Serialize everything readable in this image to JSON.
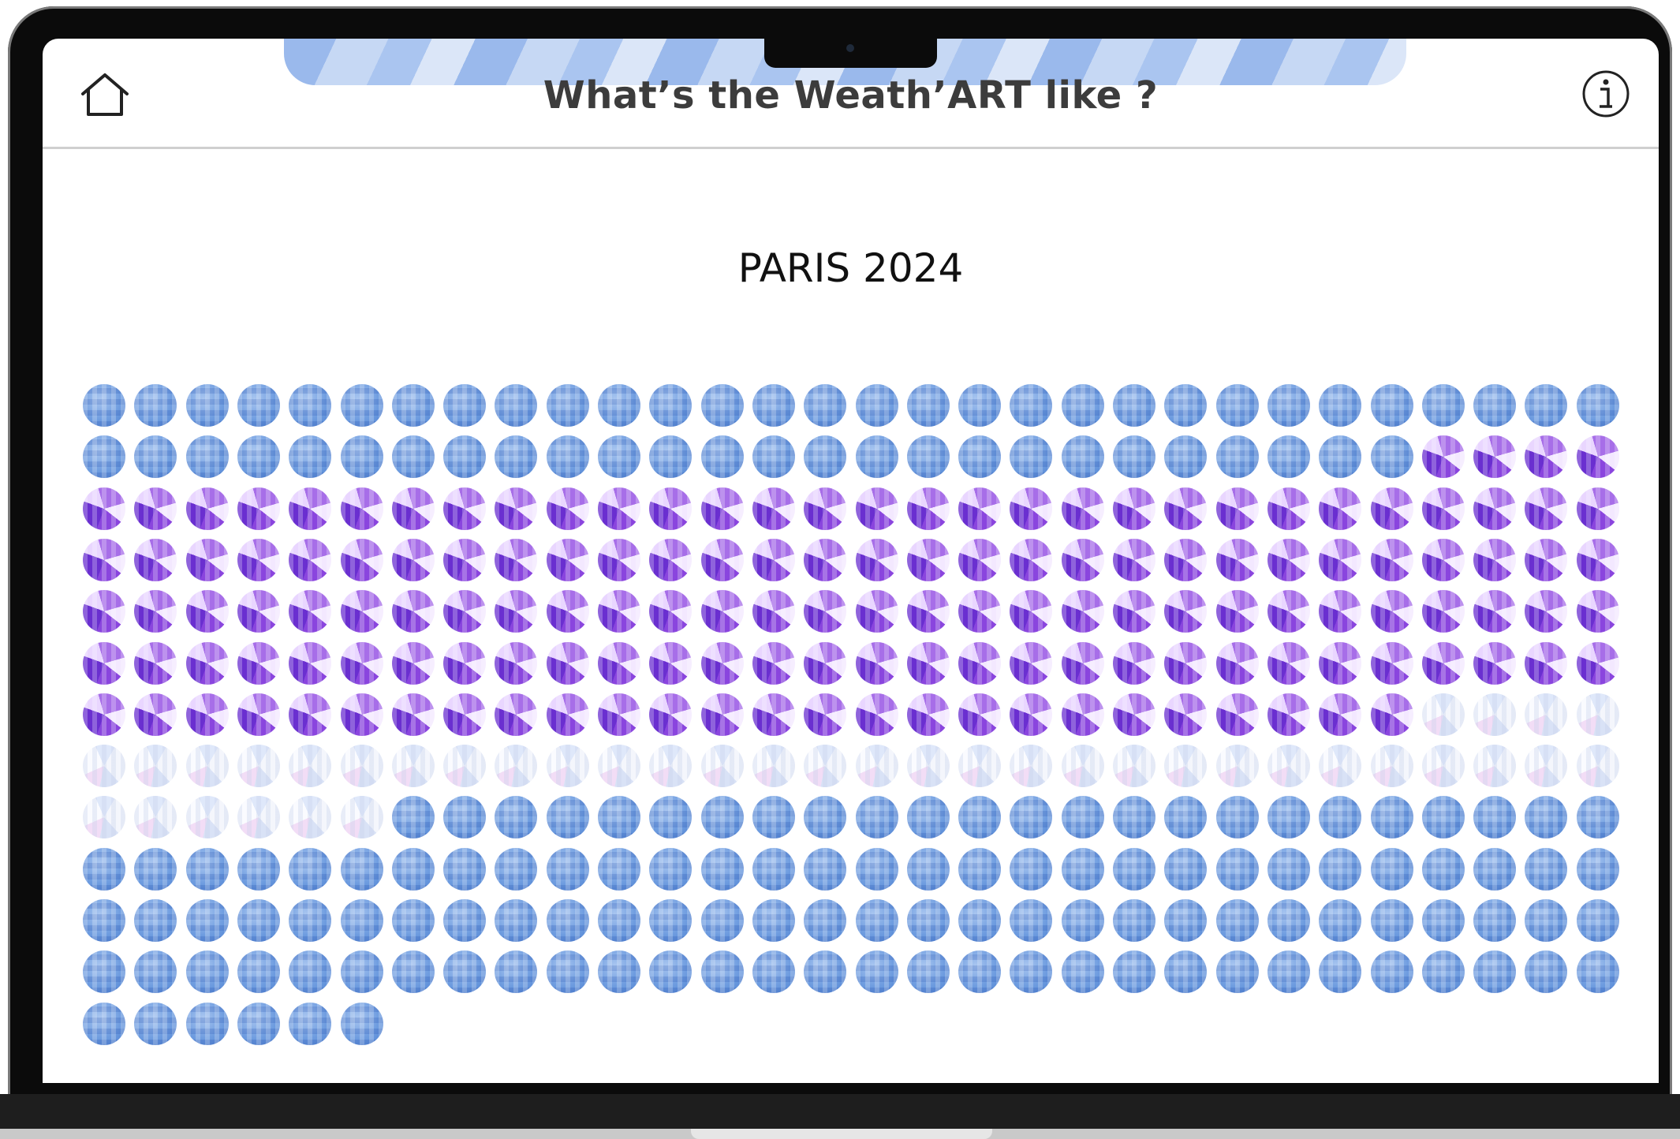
{
  "header": {
    "title": "What’s the Weath’ART like ?"
  },
  "icons": {
    "home": "home-icon",
    "info": "info-icon"
  },
  "chart_data": {
    "type": "waffle",
    "title": "PARIS 2024",
    "total_days": 366,
    "series": [
      {
        "style": "blue",
        "count": 56
      },
      {
        "style": "purple",
        "count": 150
      },
      {
        "style": "white",
        "count": 40
      },
      {
        "style": "blue",
        "count": 120
      }
    ]
  }
}
